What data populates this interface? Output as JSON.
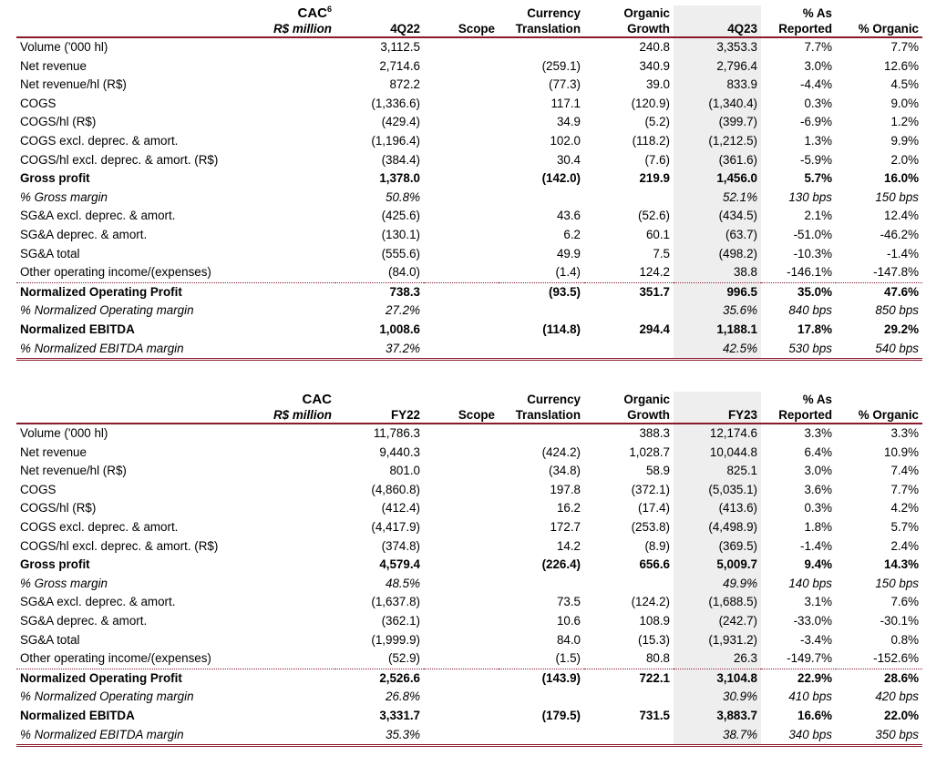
{
  "tables": [
    {
      "title": "CAC",
      "title_sup": "6",
      "unit": "R$ million",
      "headers": {
        "prev_line1": "",
        "prev_line2": "4Q22",
        "scope_line1": "",
        "scope_line2": "Scope",
        "curr_line1": "Currency",
        "curr_line2": "Translation",
        "org_line1": "Organic",
        "org_line2": "Growth",
        "cur_line1": "",
        "cur_line2": "4Q23",
        "asrep_line1": "% As",
        "asrep_line2": "Reported",
        "pctorg_line1": "",
        "pctorg_line2": "% Organic"
      },
      "rows": [
        {
          "label": "Volume ('000 hl)",
          "prev": "3,112.5",
          "scope": "",
          "curr": "",
          "org": "240.8",
          "cur": "3,353.3",
          "asrep": "7.7%",
          "pctorg": "7.7%",
          "style": ""
        },
        {
          "label": "Net revenue",
          "prev": "2,714.6",
          "scope": "",
          "curr": "(259.1)",
          "org": "340.9",
          "cur": "2,796.4",
          "asrep": "3.0%",
          "pctorg": "12.6%",
          "style": ""
        },
        {
          "label": "Net revenue/hl (R$)",
          "prev": "872.2",
          "scope": "",
          "curr": "(77.3)",
          "org": "39.0",
          "cur": "833.9",
          "asrep": "-4.4%",
          "pctorg": "4.5%",
          "style": ""
        },
        {
          "label": "COGS",
          "prev": "(1,336.6)",
          "scope": "",
          "curr": "117.1",
          "org": "(120.9)",
          "cur": "(1,340.4)",
          "asrep": "0.3%",
          "pctorg": "9.0%",
          "style": ""
        },
        {
          "label": "COGS/hl (R$)",
          "prev": "(429.4)",
          "scope": "",
          "curr": "34.9",
          "org": "(5.2)",
          "cur": "(399.7)",
          "asrep": "-6.9%",
          "pctorg": "1.2%",
          "style": ""
        },
        {
          "label": "COGS excl. deprec. & amort.",
          "prev": "(1,196.4)",
          "scope": "",
          "curr": "102.0",
          "org": "(118.2)",
          "cur": "(1,212.5)",
          "asrep": "1.3%",
          "pctorg": "9.9%",
          "style": ""
        },
        {
          "label": "COGS/hl excl. deprec. & amort. (R$)",
          "prev": "(384.4)",
          "scope": "",
          "curr": "30.4",
          "org": "(7.6)",
          "cur": "(361.6)",
          "asrep": "-5.9%",
          "pctorg": "2.0%",
          "style": ""
        },
        {
          "label": "Gross profit",
          "prev": "1,378.0",
          "scope": "",
          "curr": "(142.0)",
          "org": "219.9",
          "cur": "1,456.0",
          "asrep": "5.7%",
          "pctorg": "16.0%",
          "style": "bold"
        },
        {
          "label": "% Gross margin",
          "prev": "50.8%",
          "scope": "",
          "curr": "",
          "org": "",
          "cur": "52.1%",
          "asrep": "130 bps",
          "pctorg": "150 bps",
          "style": "ital"
        },
        {
          "label": "SG&A excl. deprec. & amort.",
          "prev": "(425.6)",
          "scope": "",
          "curr": "43.6",
          "org": "(52.6)",
          "cur": "(434.5)",
          "asrep": "2.1%",
          "pctorg": "12.4%",
          "style": ""
        },
        {
          "label": "SG&A deprec. & amort.",
          "prev": "(130.1)",
          "scope": "",
          "curr": "6.2",
          "org": "60.1",
          "cur": "(63.7)",
          "asrep": "-51.0%",
          "pctorg": "-46.2%",
          "style": ""
        },
        {
          "label": "SG&A total",
          "prev": "(555.6)",
          "scope": "",
          "curr": "49.9",
          "org": "7.5",
          "cur": "(498.2)",
          "asrep": "-10.3%",
          "pctorg": "-1.4%",
          "style": ""
        },
        {
          "label": "Other operating income/(expenses)",
          "prev": "(84.0)",
          "scope": "",
          "curr": "(1.4)",
          "org": "124.2",
          "cur": "38.8",
          "asrep": "-146.1%",
          "pctorg": "-147.8%",
          "style": "dotted"
        },
        {
          "label": "Normalized Operating Profit",
          "prev": "738.3",
          "scope": "",
          "curr": "(93.5)",
          "org": "351.7",
          "cur": "996.5",
          "asrep": "35.0%",
          "pctorg": "47.6%",
          "style": "bold"
        },
        {
          "label": "% Normalized Operating margin",
          "prev": "27.2%",
          "scope": "",
          "curr": "",
          "org": "",
          "cur": "35.6%",
          "asrep": "840 bps",
          "pctorg": "850 bps",
          "style": "ital"
        },
        {
          "label": "Normalized EBITDA",
          "prev": "1,008.6",
          "scope": "",
          "curr": "(114.8)",
          "org": "294.4",
          "cur": "1,188.1",
          "asrep": "17.8%",
          "pctorg": "29.2%",
          "style": "bold"
        },
        {
          "label": "% Normalized EBITDA margin",
          "prev": "37.2%",
          "scope": "",
          "curr": "",
          "org": "",
          "cur": "42.5%",
          "asrep": "530 bps",
          "pctorg": "540 bps",
          "style": "ital last"
        }
      ]
    },
    {
      "title": "CAC",
      "title_sup": "",
      "unit": "R$ million",
      "headers": {
        "prev_line1": "",
        "prev_line2": "FY22",
        "scope_line1": "",
        "scope_line2": "Scope",
        "curr_line1": "Currency",
        "curr_line2": "Translation",
        "org_line1": "Organic",
        "org_line2": "Growth",
        "cur_line1": "",
        "cur_line2": "FY23",
        "asrep_line1": "% As",
        "asrep_line2": "Reported",
        "pctorg_line1": "",
        "pctorg_line2": "% Organic"
      },
      "rows": [
        {
          "label": "Volume ('000 hl)",
          "prev": "11,786.3",
          "scope": "",
          "curr": "",
          "org": "388.3",
          "cur": "12,174.6",
          "asrep": "3.3%",
          "pctorg": "3.3%",
          "style": ""
        },
        {
          "label": "Net revenue",
          "prev": "9,440.3",
          "scope": "",
          "curr": "(424.2)",
          "org": "1,028.7",
          "cur": "10,044.8",
          "asrep": "6.4%",
          "pctorg": "10.9%",
          "style": ""
        },
        {
          "label": "Net revenue/hl (R$)",
          "prev": "801.0",
          "scope": "",
          "curr": "(34.8)",
          "org": "58.9",
          "cur": "825.1",
          "asrep": "3.0%",
          "pctorg": "7.4%",
          "style": ""
        },
        {
          "label": "COGS",
          "prev": "(4,860.8)",
          "scope": "",
          "curr": "197.8",
          "org": "(372.1)",
          "cur": "(5,035.1)",
          "asrep": "3.6%",
          "pctorg": "7.7%",
          "style": ""
        },
        {
          "label": "COGS/hl (R$)",
          "prev": "(412.4)",
          "scope": "",
          "curr": "16.2",
          "org": "(17.4)",
          "cur": "(413.6)",
          "asrep": "0.3%",
          "pctorg": "4.2%",
          "style": ""
        },
        {
          "label": "COGS excl. deprec. & amort.",
          "prev": "(4,417.9)",
          "scope": "",
          "curr": "172.7",
          "org": "(253.8)",
          "cur": "(4,498.9)",
          "asrep": "1.8%",
          "pctorg": "5.7%",
          "style": ""
        },
        {
          "label": "COGS/hl excl. deprec. & amort. (R$)",
          "prev": "(374.8)",
          "scope": "",
          "curr": "14.2",
          "org": "(8.9)",
          "cur": "(369.5)",
          "asrep": "-1.4%",
          "pctorg": "2.4%",
          "style": ""
        },
        {
          "label": "Gross profit",
          "prev": "4,579.4",
          "scope": "",
          "curr": "(226.4)",
          "org": "656.6",
          "cur": "5,009.7",
          "asrep": "9.4%",
          "pctorg": "14.3%",
          "style": "bold"
        },
        {
          "label": "% Gross margin",
          "prev": "48.5%",
          "scope": "",
          "curr": "",
          "org": "",
          "cur": "49.9%",
          "asrep": "140 bps",
          "pctorg": "150 bps",
          "style": "ital"
        },
        {
          "label": "SG&A excl. deprec. & amort.",
          "prev": "(1,637.8)",
          "scope": "",
          "curr": "73.5",
          "org": "(124.2)",
          "cur": "(1,688.5)",
          "asrep": "3.1%",
          "pctorg": "7.6%",
          "style": ""
        },
        {
          "label": "SG&A deprec. & amort.",
          "prev": "(362.1)",
          "scope": "",
          "curr": "10.6",
          "org": "108.9",
          "cur": "(242.7)",
          "asrep": "-33.0%",
          "pctorg": "-30.1%",
          "style": ""
        },
        {
          "label": "SG&A total",
          "prev": "(1,999.9)",
          "scope": "",
          "curr": "84.0",
          "org": "(15.3)",
          "cur": "(1,931.2)",
          "asrep": "-3.4%",
          "pctorg": "0.8%",
          "style": ""
        },
        {
          "label": "Other operating income/(expenses)",
          "prev": "(52.9)",
          "scope": "",
          "curr": "(1.5)",
          "org": "80.8",
          "cur": "26.3",
          "asrep": "-149.7%",
          "pctorg": "-152.6%",
          "style": "dotted"
        },
        {
          "label": "Normalized Operating Profit",
          "prev": "2,526.6",
          "scope": "",
          "curr": "(143.9)",
          "org": "722.1",
          "cur": "3,104.8",
          "asrep": "22.9%",
          "pctorg": "28.6%",
          "style": "bold"
        },
        {
          "label": "% Normalized Operating margin",
          "prev": "26.8%",
          "scope": "",
          "curr": "",
          "org": "",
          "cur": "30.9%",
          "asrep": "410 bps",
          "pctorg": "420 bps",
          "style": "ital"
        },
        {
          "label": "Normalized EBITDA",
          "prev": "3,331.7",
          "scope": "",
          "curr": "(179.5)",
          "org": "731.5",
          "cur": "3,883.7",
          "asrep": "16.6%",
          "pctorg": "22.0%",
          "style": "bold"
        },
        {
          "label": "% Normalized EBITDA margin",
          "prev": "35.3%",
          "scope": "",
          "curr": "",
          "org": "",
          "cur": "38.7%",
          "asrep": "340 bps",
          "pctorg": "350 bps",
          "style": "ital last"
        }
      ]
    }
  ]
}
